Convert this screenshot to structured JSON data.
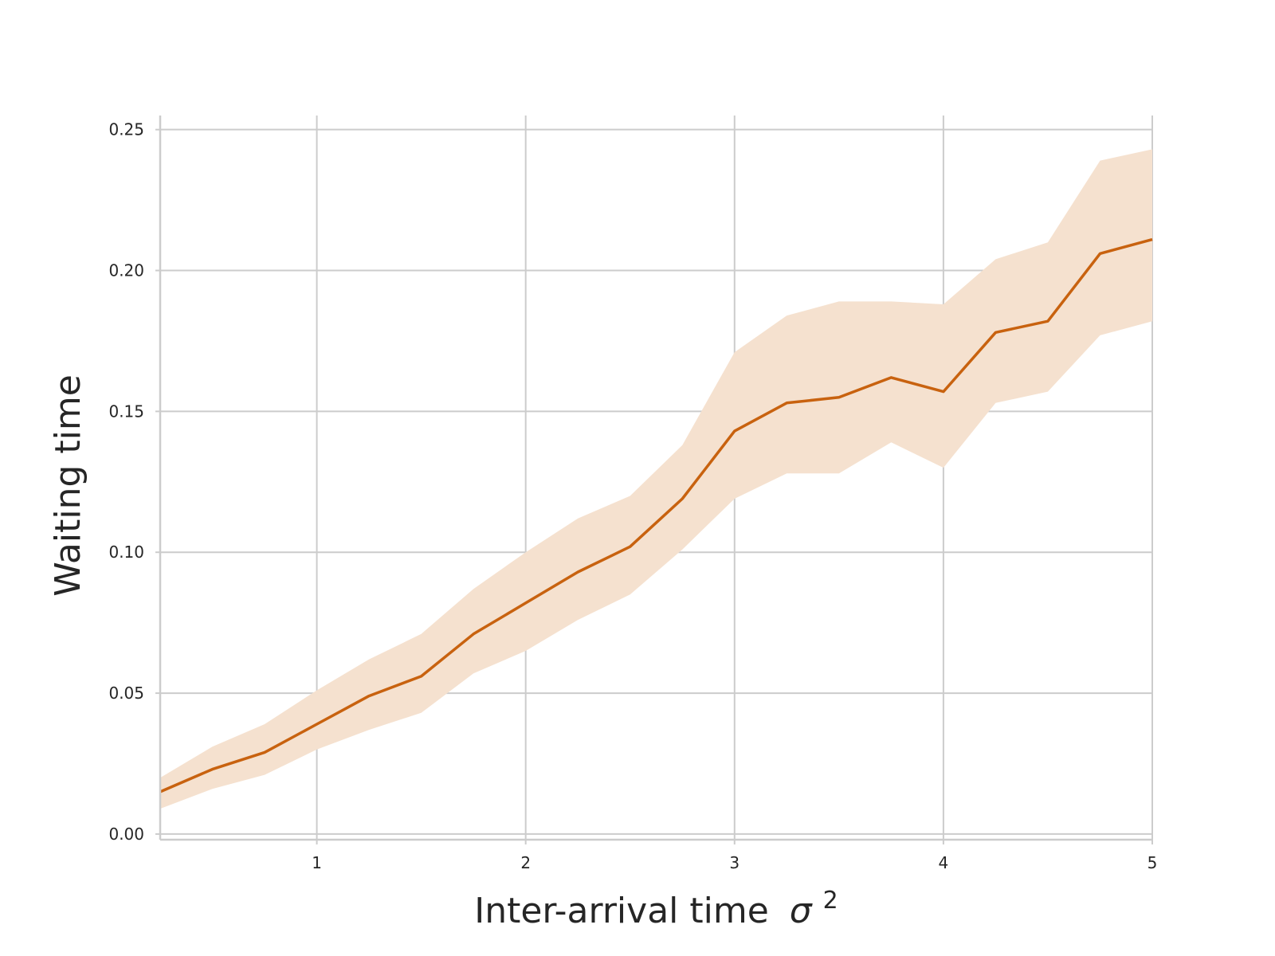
{
  "chart_data": {
    "type": "line",
    "title": "",
    "xlabel": "Inter-arrival time",
    "xlabel_symbol": "σ",
    "xlabel_superscript": "2",
    "ylabel": "Waiting time",
    "xlim": [
      0.25,
      5.0
    ],
    "ylim": [
      -0.002,
      0.255
    ],
    "x_ticks": [
      1,
      2,
      3,
      4,
      5
    ],
    "x_tick_labels": [
      "1",
      "2",
      "3",
      "4",
      "5"
    ],
    "y_ticks": [
      0.0,
      0.05,
      0.1,
      0.15,
      0.2,
      0.25
    ],
    "y_tick_labels": [
      "0.00",
      "0.05",
      "0.10",
      "0.15",
      "0.20",
      "0.25"
    ],
    "grid": true,
    "legend": "none",
    "series": [
      {
        "color": "#c8620f",
        "band_color": "#f5e1cf",
        "x": [
          0.25,
          0.5,
          0.75,
          1.0,
          1.25,
          1.5,
          1.75,
          2.0,
          2.25,
          2.5,
          2.75,
          3.0,
          3.25,
          3.5,
          3.75,
          4.0,
          4.25,
          4.5,
          4.75,
          5.0
        ],
        "y": [
          0.015,
          0.023,
          0.029,
          0.039,
          0.049,
          0.056,
          0.071,
          0.082,
          0.093,
          0.102,
          0.119,
          0.143,
          0.153,
          0.155,
          0.162,
          0.157,
          0.178,
          0.182,
          0.206,
          0.211
        ],
        "lower": [
          0.009,
          0.016,
          0.021,
          0.03,
          0.037,
          0.043,
          0.057,
          0.065,
          0.076,
          0.085,
          0.101,
          0.119,
          0.128,
          0.128,
          0.139,
          0.13,
          0.153,
          0.157,
          0.177,
          0.182
        ],
        "upper": [
          0.02,
          0.031,
          0.039,
          0.051,
          0.062,
          0.071,
          0.087,
          0.1,
          0.112,
          0.12,
          0.138,
          0.171,
          0.184,
          0.189,
          0.189,
          0.188,
          0.204,
          0.21,
          0.239,
          0.243
        ]
      }
    ]
  }
}
